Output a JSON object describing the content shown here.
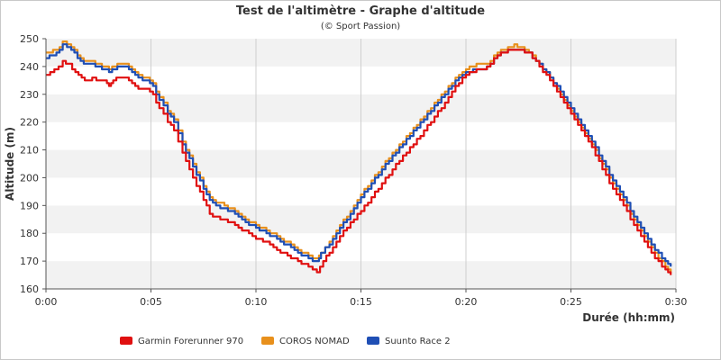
{
  "chart_data": {
    "type": "line",
    "title": "Test de l'altimètre - Graphe d'altitude",
    "subtitle": "(© Sport Passion)",
    "xlabel": "Durée (hh:mm)",
    "ylabel": "Altitude (m)",
    "xlim": [
      0,
      30
    ],
    "ylim": [
      160,
      250
    ],
    "x_ticks": [
      {
        "value": 0,
        "label": "0:00"
      },
      {
        "value": 5,
        "label": "0:05"
      },
      {
        "value": 10,
        "label": "0:10"
      },
      {
        "value": 15,
        "label": "0:15"
      },
      {
        "value": 20,
        "label": "0:20"
      },
      {
        "value": 25,
        "label": "0:25"
      },
      {
        "value": 30,
        "label": "0:30"
      }
    ],
    "y_ticks": [
      160,
      170,
      180,
      190,
      200,
      210,
      220,
      230,
      240,
      250
    ],
    "grid": "vertical lines and alternating horizontal bands",
    "legend_position": "bottom-left",
    "series": [
      {
        "name": "COROS NOMAD",
        "color": "#e8901c",
        "points": [
          [
            0,
            245
          ],
          [
            0.5,
            246
          ],
          [
            0.8,
            248.5
          ],
          [
            1.2,
            247
          ],
          [
            1.5,
            244
          ],
          [
            1.8,
            242
          ],
          [
            2.2,
            241.5
          ],
          [
            2.5,
            241
          ],
          [
            3.0,
            239
          ],
          [
            3.3,
            240
          ],
          [
            3.5,
            241
          ],
          [
            3.8,
            240.5
          ],
          [
            4.1,
            238.5
          ],
          [
            4.4,
            236.5
          ],
          [
            4.8,
            235.5
          ],
          [
            5.1,
            233.5
          ],
          [
            5.4,
            229
          ],
          [
            5.8,
            224
          ],
          [
            6.1,
            221
          ],
          [
            6.5,
            213
          ],
          [
            7.0,
            205
          ],
          [
            7.5,
            197
          ],
          [
            7.8,
            193
          ],
          [
            8.1,
            191
          ],
          [
            8.5,
            190
          ],
          [
            9.0,
            188
          ],
          [
            9.5,
            185
          ],
          [
            10.0,
            183
          ],
          [
            10.5,
            181
          ],
          [
            11.0,
            179
          ],
          [
            11.5,
            176.5
          ],
          [
            12.0,
            174
          ],
          [
            12.5,
            172
          ],
          [
            12.9,
            170.5
          ],
          [
            13.1,
            173
          ],
          [
            13.5,
            177
          ],
          [
            14.0,
            183
          ],
          [
            14.5,
            188
          ],
          [
            15.0,
            194
          ],
          [
            15.5,
            199
          ],
          [
            16.0,
            204
          ],
          [
            16.5,
            209
          ],
          [
            17.0,
            213
          ],
          [
            17.5,
            218
          ],
          [
            18.0,
            222
          ],
          [
            18.5,
            227
          ],
          [
            19.0,
            231
          ],
          [
            19.5,
            236
          ],
          [
            20.0,
            239
          ],
          [
            20.5,
            240.5
          ],
          [
            21.0,
            241
          ],
          [
            21.5,
            245
          ],
          [
            22.0,
            247
          ],
          [
            22.3,
            247.5
          ],
          [
            22.6,
            246.5
          ],
          [
            23.0,
            245
          ],
          [
            23.5,
            241
          ],
          [
            24.0,
            236
          ],
          [
            24.5,
            230
          ],
          [
            25.0,
            224
          ],
          [
            25.5,
            218
          ],
          [
            26.0,
            212
          ],
          [
            26.5,
            205
          ],
          [
            27.0,
            198
          ],
          [
            27.5,
            192
          ],
          [
            28.0,
            185
          ],
          [
            28.5,
            179
          ],
          [
            29.0,
            173
          ],
          [
            29.5,
            168
          ],
          [
            29.75,
            166
          ]
        ]
      },
      {
        "name": "Suunto Race 2",
        "color": "#1f4fb5",
        "points": [
          [
            0,
            243
          ],
          [
            0.5,
            245
          ],
          [
            0.8,
            247.5
          ],
          [
            1.2,
            246
          ],
          [
            1.5,
            243
          ],
          [
            1.8,
            241
          ],
          [
            2.2,
            240.5
          ],
          [
            2.5,
            240
          ],
          [
            3.0,
            238
          ],
          [
            3.3,
            239
          ],
          [
            3.5,
            240
          ],
          [
            3.8,
            239.5
          ],
          [
            4.1,
            237.5
          ],
          [
            4.4,
            235.5
          ],
          [
            4.8,
            234.5
          ],
          [
            5.1,
            232.5
          ],
          [
            5.4,
            228
          ],
          [
            5.8,
            223
          ],
          [
            6.1,
            220
          ],
          [
            6.5,
            212
          ],
          [
            7.0,
            204
          ],
          [
            7.5,
            196
          ],
          [
            7.8,
            191.5
          ],
          [
            8.1,
            189.5
          ],
          [
            8.5,
            188.5
          ],
          [
            9.0,
            187
          ],
          [
            9.5,
            184
          ],
          [
            10.0,
            182
          ],
          [
            10.5,
            180
          ],
          [
            11.0,
            178
          ],
          [
            11.5,
            175.5
          ],
          [
            12.0,
            173
          ],
          [
            12.5,
            171
          ],
          [
            12.9,
            169.5
          ],
          [
            13.1,
            173
          ],
          [
            13.5,
            176
          ],
          [
            14.0,
            182
          ],
          [
            14.5,
            187
          ],
          [
            15.0,
            193
          ],
          [
            15.5,
            198
          ],
          [
            16.0,
            203
          ],
          [
            16.5,
            208
          ],
          [
            17.0,
            212
          ],
          [
            17.5,
            217
          ],
          [
            18.0,
            221
          ],
          [
            18.5,
            226
          ],
          [
            19.0,
            230
          ],
          [
            19.5,
            235
          ],
          [
            20.0,
            238
          ],
          [
            20.5,
            239
          ],
          [
            21.0,
            239.5
          ],
          [
            21.5,
            244
          ],
          [
            22.0,
            245.5
          ],
          [
            22.3,
            245.5
          ],
          [
            22.6,
            246
          ],
          [
            23.0,
            244.5
          ],
          [
            23.5,
            241
          ],
          [
            24.0,
            236
          ],
          [
            24.5,
            231
          ],
          [
            25.0,
            225
          ],
          [
            25.5,
            219
          ],
          [
            26.0,
            213
          ],
          [
            26.5,
            206
          ],
          [
            27.0,
            199
          ],
          [
            27.5,
            193
          ],
          [
            28.0,
            186
          ],
          [
            28.5,
            180
          ],
          [
            29.0,
            174
          ],
          [
            29.5,
            170
          ],
          [
            29.75,
            168
          ]
        ]
      },
      {
        "name": "Garmin Forerunner 970",
        "color": "#e01010",
        "points": [
          [
            0,
            237
          ],
          [
            0.4,
            239
          ],
          [
            0.8,
            241.5
          ],
          [
            1.1,
            240.5
          ],
          [
            1.4,
            238
          ],
          [
            1.7,
            235.5
          ],
          [
            2.0,
            235
          ],
          [
            2.2,
            235.5
          ],
          [
            2.8,
            235
          ],
          [
            3.0,
            233
          ],
          [
            3.2,
            235
          ],
          [
            3.5,
            236
          ],
          [
            3.8,
            235.5
          ],
          [
            4.1,
            233.5
          ],
          [
            4.4,
            232
          ],
          [
            4.8,
            231.5
          ],
          [
            5.1,
            229.5
          ],
          [
            5.4,
            225
          ],
          [
            5.8,
            220
          ],
          [
            6.1,
            217
          ],
          [
            6.5,
            209
          ],
          [
            7.0,
            200
          ],
          [
            7.5,
            192
          ],
          [
            7.8,
            187
          ],
          [
            8.1,
            185.5
          ],
          [
            8.5,
            184.5
          ],
          [
            9.0,
            183
          ],
          [
            9.5,
            180.5
          ],
          [
            10.0,
            178
          ],
          [
            10.5,
            176.5
          ],
          [
            11.0,
            174
          ],
          [
            11.5,
            172
          ],
          [
            12.0,
            170
          ],
          [
            12.5,
            168
          ],
          [
            12.9,
            166
          ],
          [
            13.2,
            170
          ],
          [
            13.5,
            173
          ],
          [
            14.0,
            179
          ],
          [
            14.5,
            184
          ],
          [
            15.0,
            188
          ],
          [
            15.5,
            193
          ],
          [
            16.0,
            198
          ],
          [
            16.5,
            203
          ],
          [
            17.0,
            208
          ],
          [
            17.5,
            212
          ],
          [
            18.0,
            217
          ],
          [
            18.5,
            222
          ],
          [
            19.0,
            227
          ],
          [
            19.5,
            233
          ],
          [
            20.0,
            237
          ],
          [
            20.5,
            239
          ],
          [
            21.0,
            239.5
          ],
          [
            21.5,
            244
          ],
          [
            22.0,
            245.5
          ],
          [
            22.3,
            245.5
          ],
          [
            22.6,
            246
          ],
          [
            23.0,
            244.5
          ],
          [
            23.5,
            240
          ],
          [
            24.0,
            235
          ],
          [
            24.5,
            229
          ],
          [
            25.0,
            223
          ],
          [
            25.5,
            217
          ],
          [
            26.0,
            211
          ],
          [
            26.5,
            203
          ],
          [
            27.0,
            196
          ],
          [
            27.5,
            190
          ],
          [
            28.0,
            183
          ],
          [
            28.5,
            177
          ],
          [
            29.0,
            171
          ],
          [
            29.5,
            167
          ],
          [
            29.75,
            165
          ]
        ]
      }
    ],
    "legend": [
      {
        "name": "Garmin Forerunner 970",
        "color": "#e01010"
      },
      {
        "name": "COROS NOMAD",
        "color": "#e8901c"
      },
      {
        "name": "Suunto Race 2",
        "color": "#1f4fb5"
      }
    ]
  }
}
